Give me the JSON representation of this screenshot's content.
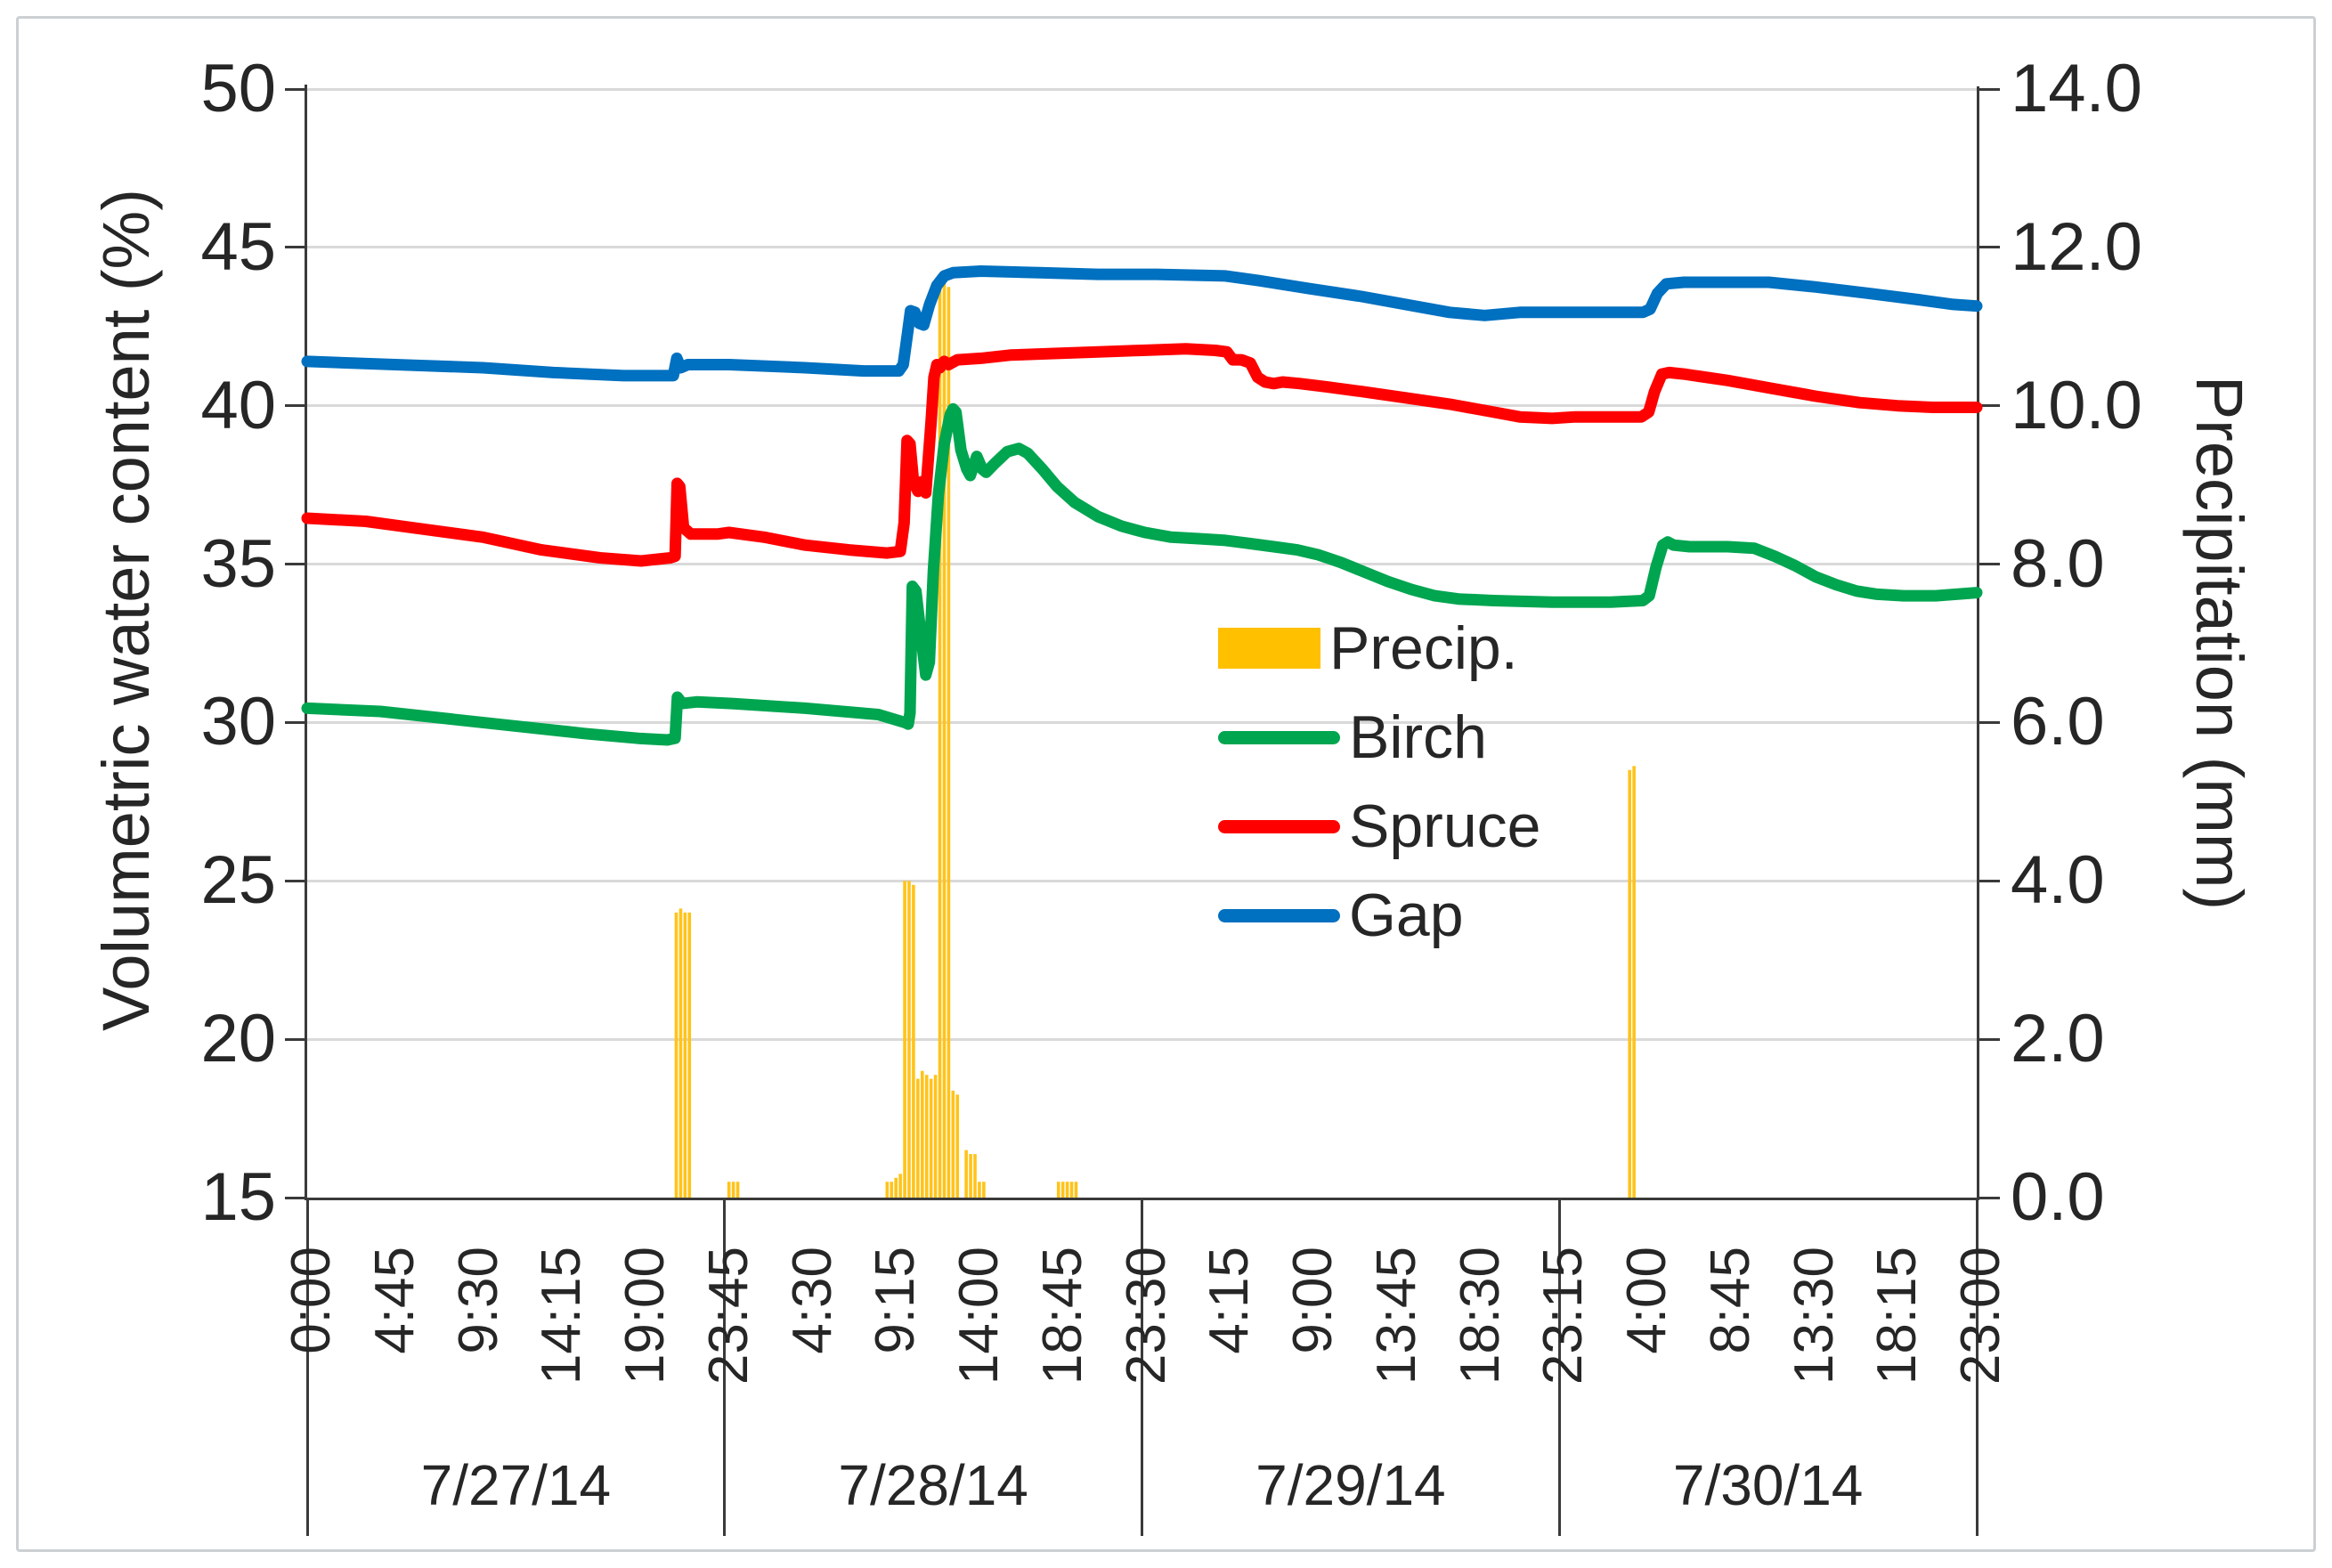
{
  "chart_data": {
    "type": "line+bar",
    "y_left": {
      "label": "Volumetric water content (%)",
      "min": 15,
      "max": 50,
      "ticks": [
        50,
        45,
        40,
        35,
        30,
        25,
        20,
        15
      ]
    },
    "y_right": {
      "label": "Precipitation (mm)",
      "min": 0,
      "max": 14,
      "ticks": [
        "14.0",
        "12.0",
        "10.0",
        "8.0",
        "6.0",
        "4.0",
        "2.0",
        "0.0"
      ]
    },
    "x": {
      "total_minutes": 5700,
      "tick_interval_minutes": 285,
      "tick_labels": [
        "0:00",
        "4:45",
        "9:30",
        "14:15",
        "19:00",
        "23:45",
        "4:30",
        "9:15",
        "14:00",
        "18:45",
        "23:30",
        "4:15",
        "9:00",
        "13:45",
        "18:30",
        "23:15",
        "4:00",
        "8:45",
        "13:30",
        "18:15",
        "23:00"
      ],
      "day_boundaries_minutes": [
        0,
        1425,
        2850,
        4275,
        5700
      ],
      "date_labels": [
        "7/27/14",
        "7/28/14",
        "7/29/14",
        "7/30/14"
      ],
      "grid_on": true
    },
    "legend": [
      {
        "label": "Precip.",
        "color": "#FFC000",
        "swatch": "bar"
      },
      {
        "label": "Birch",
        "color": "#00A550",
        "swatch": "line"
      },
      {
        "label": "Spruce",
        "color": "#FF0000",
        "swatch": "line"
      },
      {
        "label": "Gap",
        "color": "#0070C0",
        "swatch": "line"
      }
    ],
    "precip": {
      "name": "Precip.",
      "color": "#FFC31A",
      "bar_minutes": 15,
      "bars": [
        [
          1260,
          3.6
        ],
        [
          1275,
          3.65
        ],
        [
          1290,
          3.6
        ],
        [
          1305,
          3.6
        ],
        [
          1440,
          0.2
        ],
        [
          1455,
          0.2
        ],
        [
          1470,
          0.2
        ],
        [
          1980,
          0.2
        ],
        [
          1995,
          0.2
        ],
        [
          2010,
          0.25
        ],
        [
          2025,
          0.3
        ],
        [
          2040,
          4.0
        ],
        [
          2055,
          4.0
        ],
        [
          2070,
          3.95
        ],
        [
          2085,
          1.5
        ],
        [
          2100,
          1.6
        ],
        [
          2115,
          1.55
        ],
        [
          2130,
          1.5
        ],
        [
          2145,
          1.55
        ],
        [
          2160,
          11.5
        ],
        [
          2175,
          11.55
        ],
        [
          2190,
          11.5
        ],
        [
          2205,
          1.35
        ],
        [
          2220,
          1.3
        ],
        [
          2250,
          0.6
        ],
        [
          2265,
          0.55
        ],
        [
          2280,
          0.55
        ],
        [
          2295,
          0.2
        ],
        [
          2310,
          0.2
        ],
        [
          2565,
          0.2
        ],
        [
          2580,
          0.2
        ],
        [
          2595,
          0.2
        ],
        [
          2610,
          0.2
        ],
        [
          2625,
          0.2
        ],
        [
          4515,
          5.4
        ],
        [
          4530,
          5.45
        ]
      ]
    },
    "series": [
      {
        "name": "Gap",
        "color": "#0070C0",
        "points": [
          [
            0,
            41.4
          ],
          [
            300,
            41.3
          ],
          [
            600,
            41.2
          ],
          [
            840,
            41.05
          ],
          [
            1080,
            40.95
          ],
          [
            1250,
            40.95
          ],
          [
            1262,
            41.5
          ],
          [
            1275,
            41.2
          ],
          [
            1300,
            41.3
          ],
          [
            1440,
            41.3
          ],
          [
            1700,
            41.2
          ],
          [
            1900,
            41.1
          ],
          [
            2020,
            41.1
          ],
          [
            2035,
            41.3
          ],
          [
            2050,
            42.3
          ],
          [
            2060,
            43.0
          ],
          [
            2075,
            42.95
          ],
          [
            2090,
            42.6
          ],
          [
            2105,
            42.55
          ],
          [
            2125,
            43.2
          ],
          [
            2150,
            43.8
          ],
          [
            2175,
            44.1
          ],
          [
            2205,
            44.2
          ],
          [
            2300,
            44.25
          ],
          [
            2500,
            44.2
          ],
          [
            2700,
            44.15
          ],
          [
            2900,
            44.15
          ],
          [
            3135,
            44.1
          ],
          [
            3250,
            43.95
          ],
          [
            3420,
            43.7
          ],
          [
            3600,
            43.45
          ],
          [
            3780,
            43.15
          ],
          [
            3900,
            42.95
          ],
          [
            4020,
            42.85
          ],
          [
            4140,
            42.95
          ],
          [
            4400,
            42.95
          ],
          [
            4560,
            42.95
          ],
          [
            4585,
            43.05
          ],
          [
            4610,
            43.55
          ],
          [
            4640,
            43.85
          ],
          [
            4700,
            43.9
          ],
          [
            4990,
            43.9
          ],
          [
            5150,
            43.75
          ],
          [
            5330,
            43.55
          ],
          [
            5500,
            43.35
          ],
          [
            5620,
            43.2
          ],
          [
            5700,
            43.15
          ]
        ]
      },
      {
        "name": "Spruce",
        "color": "#FF0000",
        "points": [
          [
            0,
            36.45
          ],
          [
            200,
            36.35
          ],
          [
            400,
            36.1
          ],
          [
            600,
            35.85
          ],
          [
            800,
            35.45
          ],
          [
            1000,
            35.2
          ],
          [
            1140,
            35.1
          ],
          [
            1240,
            35.2
          ],
          [
            1256,
            35.25
          ],
          [
            1263,
            37.55
          ],
          [
            1272,
            37.45
          ],
          [
            1285,
            36.15
          ],
          [
            1310,
            35.95
          ],
          [
            1400,
            35.95
          ],
          [
            1440,
            36.0
          ],
          [
            1560,
            35.85
          ],
          [
            1700,
            35.6
          ],
          [
            1850,
            35.45
          ],
          [
            1980,
            35.35
          ],
          [
            2025,
            35.4
          ],
          [
            2038,
            36.3
          ],
          [
            2048,
            38.9
          ],
          [
            2058,
            38.8
          ],
          [
            2070,
            37.6
          ],
          [
            2085,
            37.3
          ],
          [
            2098,
            37.6
          ],
          [
            2112,
            37.25
          ],
          [
            2130,
            39.5
          ],
          [
            2140,
            40.9
          ],
          [
            2150,
            41.3
          ],
          [
            2160,
            41.2
          ],
          [
            2175,
            41.4
          ],
          [
            2190,
            41.3
          ],
          [
            2220,
            41.45
          ],
          [
            2300,
            41.5
          ],
          [
            2400,
            41.6
          ],
          [
            2550,
            41.65
          ],
          [
            2700,
            41.7
          ],
          [
            2850,
            41.75
          ],
          [
            3000,
            41.8
          ],
          [
            3100,
            41.75
          ],
          [
            3140,
            41.7
          ],
          [
            3160,
            41.45
          ],
          [
            3190,
            41.45
          ],
          [
            3220,
            41.35
          ],
          [
            3245,
            40.9
          ],
          [
            3270,
            40.75
          ],
          [
            3300,
            40.7
          ],
          [
            3330,
            40.75
          ],
          [
            3390,
            40.7
          ],
          [
            3480,
            40.6
          ],
          [
            3600,
            40.45
          ],
          [
            3750,
            40.25
          ],
          [
            3900,
            40.05
          ],
          [
            4020,
            39.85
          ],
          [
            4140,
            39.65
          ],
          [
            4250,
            39.6
          ],
          [
            4330,
            39.65
          ],
          [
            4555,
            39.65
          ],
          [
            4580,
            39.8
          ],
          [
            4600,
            40.45
          ],
          [
            4625,
            41.0
          ],
          [
            4650,
            41.05
          ],
          [
            4700,
            41.0
          ],
          [
            4850,
            40.8
          ],
          [
            5000,
            40.55
          ],
          [
            5150,
            40.3
          ],
          [
            5300,
            40.1
          ],
          [
            5430,
            40.0
          ],
          [
            5550,
            39.95
          ],
          [
            5700,
            39.95
          ]
        ]
      },
      {
        "name": "Birch",
        "color": "#00A550",
        "points": [
          [
            0,
            30.45
          ],
          [
            250,
            30.35
          ],
          [
            500,
            30.1
          ],
          [
            750,
            29.85
          ],
          [
            950,
            29.65
          ],
          [
            1130,
            29.5
          ],
          [
            1230,
            29.45
          ],
          [
            1256,
            29.5
          ],
          [
            1264,
            30.8
          ],
          [
            1280,
            30.6
          ],
          [
            1330,
            30.65
          ],
          [
            1450,
            30.6
          ],
          [
            1700,
            30.45
          ],
          [
            1950,
            30.25
          ],
          [
            2040,
            30.0
          ],
          [
            2052,
            29.95
          ],
          [
            2058,
            30.3
          ],
          [
            2066,
            34.3
          ],
          [
            2078,
            34.15
          ],
          [
            2095,
            32.8
          ],
          [
            2112,
            31.5
          ],
          [
            2124,
            31.9
          ],
          [
            2138,
            34.8
          ],
          [
            2155,
            37.2
          ],
          [
            2175,
            38.8
          ],
          [
            2195,
            39.7
          ],
          [
            2205,
            39.9
          ],
          [
            2215,
            39.8
          ],
          [
            2232,
            38.6
          ],
          [
            2252,
            38.0
          ],
          [
            2264,
            37.8
          ],
          [
            2286,
            38.4
          ],
          [
            2305,
            38.0
          ],
          [
            2318,
            37.9
          ],
          [
            2350,
            38.2
          ],
          [
            2390,
            38.55
          ],
          [
            2430,
            38.65
          ],
          [
            2460,
            38.5
          ],
          [
            2510,
            38.0
          ],
          [
            2560,
            37.45
          ],
          [
            2620,
            36.95
          ],
          [
            2700,
            36.5
          ],
          [
            2780,
            36.2
          ],
          [
            2860,
            36.0
          ],
          [
            2950,
            35.85
          ],
          [
            3050,
            35.8
          ],
          [
            3135,
            35.75
          ],
          [
            3220,
            35.65
          ],
          [
            3300,
            35.55
          ],
          [
            3380,
            35.45
          ],
          [
            3450,
            35.3
          ],
          [
            3530,
            35.05
          ],
          [
            3610,
            34.75
          ],
          [
            3690,
            34.45
          ],
          [
            3770,
            34.2
          ],
          [
            3850,
            34.0
          ],
          [
            3930,
            33.9
          ],
          [
            4050,
            33.85
          ],
          [
            4250,
            33.8
          ],
          [
            4450,
            33.8
          ],
          [
            4560,
            33.85
          ],
          [
            4582,
            34.0
          ],
          [
            4605,
            34.9
          ],
          [
            4628,
            35.6
          ],
          [
            4645,
            35.7
          ],
          [
            4665,
            35.6
          ],
          [
            4720,
            35.55
          ],
          [
            4850,
            35.55
          ],
          [
            4941,
            35.5
          ],
          [
            5010,
            35.25
          ],
          [
            5080,
            34.95
          ],
          [
            5150,
            34.6
          ],
          [
            5220,
            34.35
          ],
          [
            5290,
            34.15
          ],
          [
            5360,
            34.05
          ],
          [
            5450,
            34.0
          ],
          [
            5560,
            34.0
          ],
          [
            5700,
            34.1
          ]
        ]
      }
    ]
  }
}
